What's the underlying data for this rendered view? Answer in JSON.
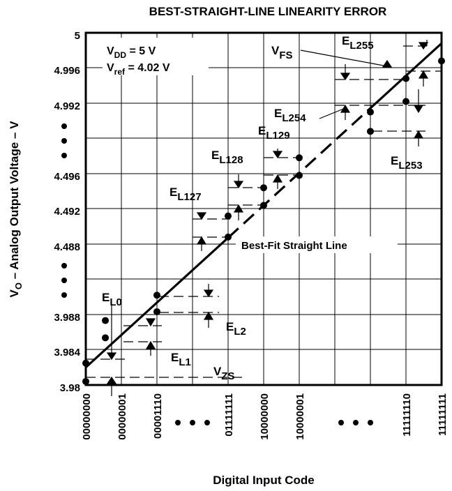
{
  "chart_data": {
    "type": "line",
    "title": "BEST-STRAIGHT-LINE LINEARITY ERROR",
    "xlabel": "Digital Input Code",
    "ylabel": {
      "main": "V",
      "sub": "O",
      "rest": " – Analog Output Voltage – V"
    },
    "x_ticks": [
      {
        "label": "00000000",
        "index": 0
      },
      {
        "label": "00000001",
        "index": 1
      },
      {
        "label": "00001110",
        "index": 2
      },
      {
        "label": "01111111",
        "index": 4
      },
      {
        "label": "10000000",
        "index": 5
      },
      {
        "label": "10000001",
        "index": 6
      },
      {
        "label": "11111110",
        "index": 9
      },
      {
        "label": "11111111",
        "index": 10
      }
    ],
    "x_ellipsis": [
      3,
      8
    ],
    "y_ticks": [
      {
        "label": "5",
        "row": 10
      },
      {
        "label": "4.996",
        "row": 9
      },
      {
        "label": "4.992",
        "row": 8
      },
      {
        "label": "4.496",
        "row": 6
      },
      {
        "label": "4.492",
        "row": 5
      },
      {
        "label": "4.488",
        "row": 4
      },
      {
        "label": "3.988",
        "row": 2
      },
      {
        "label": "3.984",
        "row": 1
      },
      {
        "label": "3.98",
        "row": 0
      }
    ],
    "y_ellipsis": [
      7,
      3
    ],
    "conditions": [
      {
        "main": "V",
        "sub": "DD",
        "rest": " = 5 V"
      },
      {
        "main": "V",
        "sub": "ref",
        "rest": " = 4.02 V"
      }
    ],
    "best_fit_label": "Best-Fit Straight Line",
    "best_fit_line": [
      {
        "x": 0,
        "y": 0.5
      },
      {
        "x": 10,
        "y": 9.7
      }
    ],
    "points": [
      {
        "x": 0,
        "y": 0.62
      },
      {
        "x": 0,
        "y": 0.1
      },
      {
        "x": 0.55,
        "y": 1.83
      },
      {
        "x": 0.55,
        "y": 1.34
      },
      {
        "x": 2,
        "y": 2.55
      },
      {
        "x": 2,
        "y": 2.08
      },
      {
        "x": 4,
        "y": 4.8
      },
      {
        "x": 4,
        "y": 4.2
      },
      {
        "x": 5,
        "y": 5.6
      },
      {
        "x": 5,
        "y": 5.1
      },
      {
        "x": 6,
        "y": 6.45
      },
      {
        "x": 6,
        "y": 5.95
      },
      {
        "x": 8,
        "y": 7.2
      },
      {
        "x": 8,
        "y": 7.75
      },
      {
        "x": 9,
        "y": 8.05
      },
      {
        "x": 9,
        "y": 8.7
      },
      {
        "x": 10,
        "y": 9.2
      }
    ],
    "error_labels": [
      {
        "main": "E",
        "sub": "L0"
      },
      {
        "main": "E",
        "sub": "L1"
      },
      {
        "main": "E",
        "sub": "L2"
      },
      {
        "main": "E",
        "sub": "L127"
      },
      {
        "main": "E",
        "sub": "L128"
      },
      {
        "main": "E",
        "sub": "L129"
      },
      {
        "main": "E",
        "sub": "L253"
      },
      {
        "main": "E",
        "sub": "L254"
      },
      {
        "main": "E",
        "sub": "L255"
      }
    ],
    "ref_labels": [
      {
        "main": "V",
        "sub": "ZS"
      },
      {
        "main": "V",
        "sub": "FS"
      }
    ],
    "grid": true
  }
}
